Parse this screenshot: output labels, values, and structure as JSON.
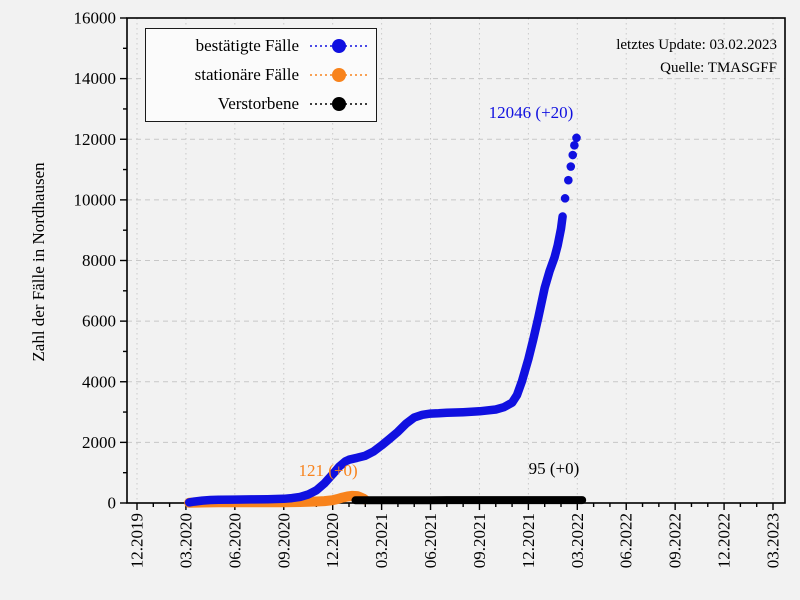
{
  "info": {
    "update_line": "letztes Update: 03.02.2023",
    "source_line": "Quelle: TMASGFF"
  },
  "legend": {
    "items": [
      {
        "label": "bestätigte Fälle",
        "color": "#1010e0"
      },
      {
        "label": "stationäre Fälle",
        "color": "#f8831c"
      },
      {
        "label": "Verstorbene",
        "color": "#000000"
      }
    ]
  },
  "chart_data": {
    "type": "scatter",
    "title": "",
    "xlabel": "",
    "ylabel": "Zahl der Fälle in Nordhausen",
    "grid": true,
    "legend_position": "upper left",
    "ylim": [
      0,
      16000
    ],
    "y_major_step": 2000,
    "y_minor_step": 1000,
    "y_ticks": [
      0,
      2000,
      4000,
      6000,
      8000,
      10000,
      12000,
      14000,
      16000
    ],
    "x_tick_labels": [
      "12.2019",
      "03.2020",
      "06.2020",
      "09.2020",
      "12.2020",
      "03.2021",
      "06.2021",
      "09.2021",
      "12.2021",
      "03.2022",
      "06.2022",
      "09.2022",
      "12.2022",
      "03.2023"
    ],
    "x_tick_months": [
      0,
      3,
      6,
      9,
      12,
      15,
      18,
      21,
      24,
      27,
      30,
      33,
      36,
      39
    ],
    "x_minor_every_month": 1,
    "series": [
      {
        "name": "stationäre Fälle",
        "color": "#f8831c",
        "line_width": 10,
        "final_value_label": "121 (+0)",
        "points": [
          [
            3.2,
            8
          ],
          [
            4,
            18
          ],
          [
            5,
            22
          ],
          [
            6,
            22
          ],
          [
            7,
            24
          ],
          [
            8,
            26
          ],
          [
            9,
            28
          ],
          [
            10,
            34
          ],
          [
            11,
            48
          ],
          [
            11.5,
            62
          ],
          [
            12,
            92
          ],
          [
            12.3,
            132
          ],
          [
            12.6,
            178
          ],
          [
            12.9,
            215
          ],
          [
            13.2,
            235
          ],
          [
            13.5,
            228
          ],
          [
            13.7,
            188
          ],
          [
            13.85,
            152
          ],
          [
            13.95,
            121
          ]
        ]
      },
      {
        "name": "Verstorbene",
        "color": "#000000",
        "line_width": 8,
        "final_value_label": "95 (+0)",
        "points": [
          [
            13.4,
            88
          ],
          [
            14,
            92
          ],
          [
            15,
            93
          ],
          [
            16,
            94
          ],
          [
            17,
            94
          ],
          [
            18,
            94
          ],
          [
            19,
            95
          ],
          [
            20,
            95
          ],
          [
            21,
            95
          ],
          [
            22,
            95
          ],
          [
            23,
            95
          ],
          [
            24,
            95
          ],
          [
            25,
            95
          ],
          [
            26,
            95
          ],
          [
            27,
            95
          ],
          [
            27.3,
            95
          ]
        ]
      },
      {
        "name": "bestätigte Fälle",
        "color": "#1010e0",
        "line_width": 8.5,
        "final_value_label": "12046 (+20)",
        "points": [
          [
            3.2,
            20
          ],
          [
            3.5,
            45
          ],
          [
            4,
            80
          ],
          [
            4.5,
            100
          ],
          [
            5,
            108
          ],
          [
            6,
            113
          ],
          [
            7,
            118
          ],
          [
            8,
            125
          ],
          [
            9,
            140
          ],
          [
            9.5,
            160
          ],
          [
            10,
            200
          ],
          [
            10.5,
            280
          ],
          [
            11,
            420
          ],
          [
            11.5,
            650
          ],
          [
            12,
            950
          ],
          [
            12.4,
            1200
          ],
          [
            12.8,
            1380
          ],
          [
            13,
            1430
          ],
          [
            13.5,
            1490
          ],
          [
            14,
            1560
          ],
          [
            14.5,
            1700
          ],
          [
            15,
            1900
          ],
          [
            15.5,
            2120
          ],
          [
            16,
            2350
          ],
          [
            16.5,
            2620
          ],
          [
            17,
            2820
          ],
          [
            17.5,
            2910
          ],
          [
            18,
            2950
          ],
          [
            18.5,
            2960
          ],
          [
            19,
            2975
          ],
          [
            20,
            2995
          ],
          [
            21,
            3025
          ],
          [
            22,
            3085
          ],
          [
            22.5,
            3160
          ],
          [
            23,
            3310
          ],
          [
            23.3,
            3560
          ],
          [
            23.6,
            4010
          ],
          [
            24,
            4750
          ],
          [
            24.3,
            5400
          ],
          [
            24.6,
            6100
          ],
          [
            25,
            7100
          ],
          [
            25.3,
            7650
          ],
          [
            25.6,
            8100
          ],
          [
            25.8,
            8500
          ],
          [
            26,
            9050
          ],
          [
            26.1,
            9450
          ]
        ],
        "tail_points": [
          [
            26.25,
            10050
          ],
          [
            26.45,
            10650
          ],
          [
            26.6,
            11100
          ],
          [
            26.72,
            11480
          ],
          [
            26.82,
            11800
          ],
          [
            26.95,
            12046
          ]
        ]
      }
    ],
    "annotations": [
      {
        "text": "12046 (+20)",
        "color": "#1010e0",
        "month": 24.16,
        "value": 12700
      },
      {
        "text": "121 (+0)",
        "color": "#f8831c",
        "month": 11.72,
        "value": 890
      },
      {
        "text": "95 (+0)",
        "color": "#000000",
        "month": 25.57,
        "value": 950
      }
    ]
  }
}
